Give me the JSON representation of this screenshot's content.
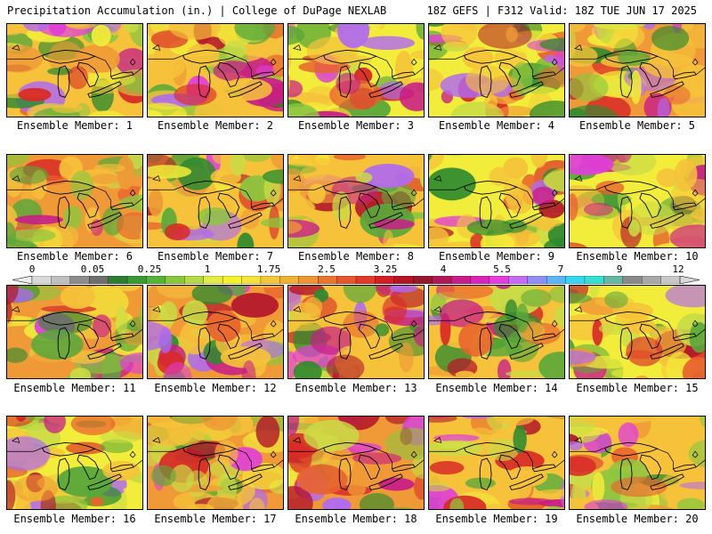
{
  "header": {
    "left": "Precipitation Accumulation (in.) | College of DuPage NEXLAB",
    "right": "18Z GEFS | F312 Valid: 18Z TUE JUN 17 2025"
  },
  "colorbar": {
    "labels": [
      "0",
      "0.05",
      "0.25",
      "1",
      "1.75",
      "2.5",
      "3.25",
      "4",
      "5.5",
      "7",
      "9",
      "12"
    ],
    "colors": [
      "#d9d9d9",
      "#bfbfbf",
      "#8c8c8c",
      "#6f6f6f",
      "#2e7d32",
      "#3c9a34",
      "#55b33a",
      "#86c83e",
      "#b6d94a",
      "#e3eb47",
      "#f5f22c",
      "#f5e23c",
      "#f2c739",
      "#efb236",
      "#ec9535",
      "#e87530",
      "#e5572c",
      "#df3a2a",
      "#d41f26",
      "#b51625",
      "#961a2e",
      "#ad1a57",
      "#c81e88",
      "#d825b8",
      "#e63dde",
      "#c56cf2",
      "#8d8ff7",
      "#5fb4f7",
      "#36d6f2",
      "#34e0d2",
      "#68b7a4",
      "#8a8a8a",
      "#a8a8a8",
      "#c8c8c8"
    ]
  },
  "panels": [
    {
      "caption": "Ensemble Member: 1"
    },
    {
      "caption": "Ensemble Member: 2"
    },
    {
      "caption": "Ensemble Member: 3"
    },
    {
      "caption": "Ensemble Member: 4"
    },
    {
      "caption": "Ensemble Member: 5"
    },
    {
      "caption": "Ensemble Member: 6"
    },
    {
      "caption": "Ensemble Member: 7"
    },
    {
      "caption": "Ensemble Member: 8"
    },
    {
      "caption": "Ensemble Member: 9"
    },
    {
      "caption": "Ensemble Member: 10"
    },
    {
      "caption": "Ensemble Member: 11"
    },
    {
      "caption": "Ensemble Member: 12"
    },
    {
      "caption": "Ensemble Member: 13"
    },
    {
      "caption": "Ensemble Member: 14"
    },
    {
      "caption": "Ensemble Member: 15"
    },
    {
      "caption": "Ensemble Member: 16"
    },
    {
      "caption": "Ensemble Member: 17"
    },
    {
      "caption": "Ensemble Member: 18"
    },
    {
      "caption": "Ensemble Member: 19"
    },
    {
      "caption": "Ensemble Member: 20"
    }
  ]
}
